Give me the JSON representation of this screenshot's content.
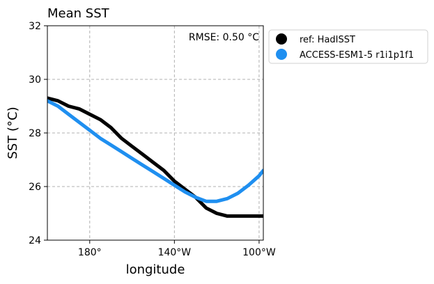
{
  "chart_data": {
    "type": "line",
    "title": "Mean SST",
    "xlabel": "longitude",
    "ylabel": "SST ($^\\circ$C)",
    "xlim": [
      160,
      262
    ],
    "ylim": [
      24,
      32
    ],
    "xticks": [
      {
        "value": 180,
        "label": "180$^\\circ$"
      },
      {
        "value": 220,
        "label": "140$^\\circ$W"
      },
      {
        "value": 260,
        "label": "100$^\\circ$W"
      }
    ],
    "yticks": [
      {
        "value": 24,
        "label": "24"
      },
      {
        "value": 26,
        "label": "26"
      },
      {
        "value": 28,
        "label": "28"
      },
      {
        "value": 30,
        "label": "30"
      },
      {
        "value": 32,
        "label": "32"
      }
    ],
    "grid": true,
    "legend_placement": "outside-right-top",
    "annotation": "RMSE: 0.50 $^\\circ$C",
    "series": [
      {
        "name": "ref: HadISST",
        "color": "#000000",
        "x": [
          160,
          165,
          170,
          175,
          180,
          185,
          190,
          195,
          200,
          205,
          210,
          215,
          220,
          225,
          230,
          235,
          240,
          245,
          250,
          255,
          260,
          262
        ],
        "y": [
          29.3,
          29.2,
          29.0,
          28.9,
          28.7,
          28.5,
          28.2,
          27.8,
          27.5,
          27.2,
          26.9,
          26.6,
          26.2,
          25.9,
          25.6,
          25.2,
          25.0,
          24.9,
          24.9,
          24.9,
          24.9,
          24.9
        ]
      },
      {
        "name": "ACCESS-ESM1-5 r1i1p1f1",
        "color": "#1f8ff0",
        "x": [
          160,
          165,
          170,
          175,
          180,
          185,
          190,
          195,
          200,
          205,
          210,
          215,
          220,
          225,
          230,
          235,
          240,
          245,
          250,
          255,
          260,
          262
        ],
        "y": [
          29.2,
          29.0,
          28.7,
          28.4,
          28.1,
          27.8,
          27.55,
          27.3,
          27.05,
          26.8,
          26.55,
          26.3,
          26.05,
          25.8,
          25.6,
          25.45,
          25.45,
          25.55,
          25.75,
          26.05,
          26.4,
          26.6
        ]
      }
    ]
  }
}
